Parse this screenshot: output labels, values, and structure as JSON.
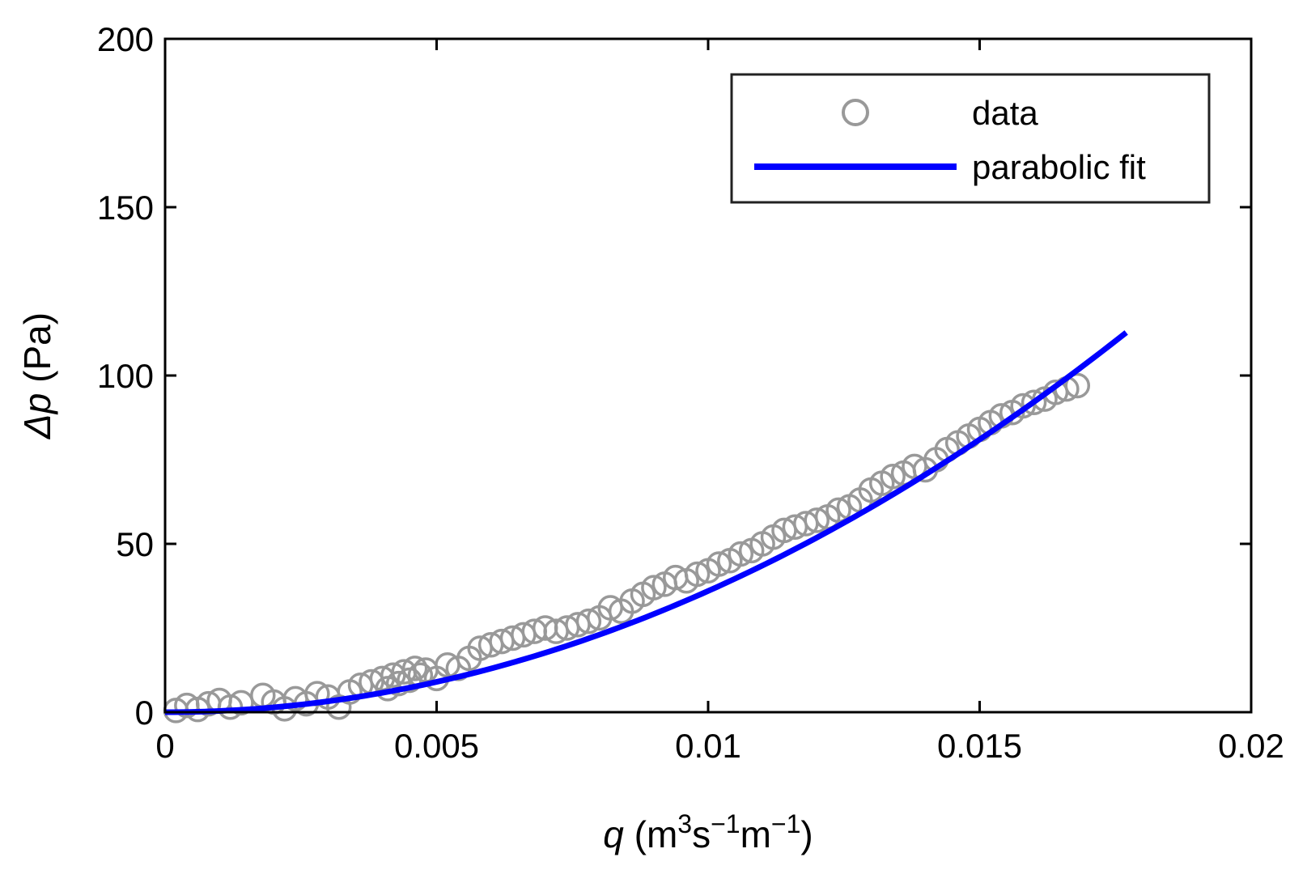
{
  "chart_data": {
    "type": "scatter",
    "title": "",
    "xlabel": {
      "var": "q",
      "unit_open": " (m",
      "sup1": "3",
      "mid": "s",
      "sup2": "−1",
      "mid2": "m",
      "sup3": "−1",
      "close": ")"
    },
    "ylabel": {
      "var": "Δp",
      "unit": " (Pa)"
    },
    "xlim": [
      0,
      0.02
    ],
    "ylim": [
      0,
      200
    ],
    "xticks": [
      0,
      0.005,
      0.01,
      0.015,
      0.02
    ],
    "xtick_labels": [
      "0",
      "0.005",
      "0.01",
      "0.015",
      "0.02"
    ],
    "yticks": [
      0,
      50,
      100,
      150,
      200
    ],
    "ytick_labels": [
      "0",
      "50",
      "100",
      "150",
      "200"
    ],
    "grid": false,
    "legend": {
      "placement": "top-right",
      "entries": [
        {
          "label": "data",
          "style": "open-circle",
          "color": "#999999"
        },
        {
          "label": "parabolic fit",
          "style": "line",
          "color": "#0000ff"
        }
      ]
    },
    "series": [
      {
        "name": "data",
        "kind": "scatter",
        "color": "#999999",
        "points": [
          [
            0.0002,
            0.5
          ],
          [
            0.0004,
            2
          ],
          [
            0.0006,
            0.8
          ],
          [
            0.0008,
            2.5
          ],
          [
            0.001,
            3.5
          ],
          [
            0.0012,
            1.5
          ],
          [
            0.0014,
            2.8
          ],
          [
            0.0018,
            5
          ],
          [
            0.002,
            3
          ],
          [
            0.0022,
            1
          ],
          [
            0.0024,
            4
          ],
          [
            0.0026,
            2.5
          ],
          [
            0.0028,
            5.5
          ],
          [
            0.003,
            4.5
          ],
          [
            0.0032,
            1.5
          ],
          [
            0.0034,
            6
          ],
          [
            0.0036,
            8
          ],
          [
            0.0038,
            9
          ],
          [
            0.004,
            10
          ],
          [
            0.0041,
            7
          ],
          [
            0.0042,
            11
          ],
          [
            0.0043,
            8.5
          ],
          [
            0.0044,
            12
          ],
          [
            0.0045,
            9.5
          ],
          [
            0.0046,
            13
          ],
          [
            0.0047,
            11
          ],
          [
            0.0048,
            12.5
          ],
          [
            0.005,
            10
          ],
          [
            0.0052,
            14
          ],
          [
            0.0054,
            13
          ],
          [
            0.0056,
            16
          ],
          [
            0.0058,
            19
          ],
          [
            0.006,
            20
          ],
          [
            0.0062,
            21
          ],
          [
            0.0064,
            22
          ],
          [
            0.0066,
            23
          ],
          [
            0.0068,
            24
          ],
          [
            0.007,
            25
          ],
          [
            0.0072,
            24
          ],
          [
            0.0074,
            25
          ],
          [
            0.0076,
            26
          ],
          [
            0.0078,
            27
          ],
          [
            0.008,
            28
          ],
          [
            0.0082,
            31
          ],
          [
            0.0084,
            30
          ],
          [
            0.0086,
            33
          ],
          [
            0.0088,
            35
          ],
          [
            0.009,
            37
          ],
          [
            0.0092,
            38
          ],
          [
            0.0094,
            40
          ],
          [
            0.0096,
            39
          ],
          [
            0.0098,
            41
          ],
          [
            0.01,
            42
          ],
          [
            0.0102,
            44
          ],
          [
            0.0104,
            45
          ],
          [
            0.0106,
            47
          ],
          [
            0.0108,
            48
          ],
          [
            0.011,
            50
          ],
          [
            0.0112,
            52
          ],
          [
            0.0114,
            54
          ],
          [
            0.0116,
            55
          ],
          [
            0.0118,
            56
          ],
          [
            0.012,
            57
          ],
          [
            0.0122,
            58
          ],
          [
            0.0124,
            60
          ],
          [
            0.0126,
            61
          ],
          [
            0.0128,
            63
          ],
          [
            0.013,
            66
          ],
          [
            0.0132,
            68
          ],
          [
            0.0134,
            70
          ],
          [
            0.0136,
            71
          ],
          [
            0.0138,
            73
          ],
          [
            0.014,
            72
          ],
          [
            0.0142,
            75
          ],
          [
            0.0144,
            78
          ],
          [
            0.0146,
            80
          ],
          [
            0.0148,
            82
          ],
          [
            0.015,
            84
          ],
          [
            0.0152,
            86
          ],
          [
            0.0154,
            88
          ],
          [
            0.0156,
            89
          ],
          [
            0.0158,
            91
          ],
          [
            0.016,
            92
          ],
          [
            0.0162,
            93
          ],
          [
            0.0164,
            95
          ],
          [
            0.0166,
            96
          ],
          [
            0.0168,
            97
          ]
        ]
      },
      {
        "name": "parabolic fit",
        "kind": "line",
        "color": "#0000ff",
        "equation": "y = a*x^2",
        "a": 360000,
        "x_range": [
          0,
          0.0177
        ]
      }
    ]
  }
}
